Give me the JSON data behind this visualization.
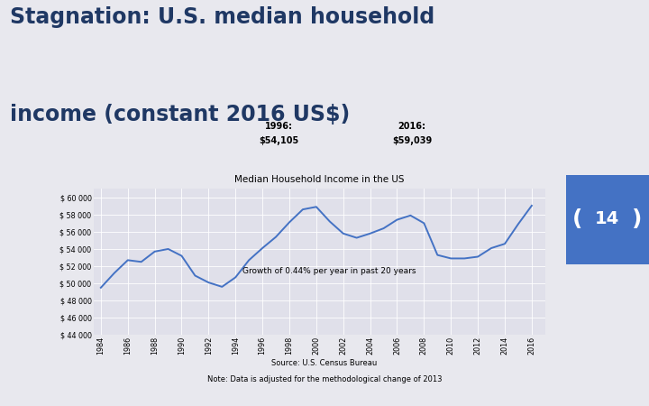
{
  "title_line1": "Stagnation: U.S. median household",
  "title_line2": "income (constant 2016 US$)",
  "title_color": "#1F3864",
  "subtitle_left_year": "1996:",
  "subtitle_left_val": "$54,105",
  "subtitle_right_year": "2016:",
  "subtitle_right_val": "$59,039",
  "chart_title": "Median Household Income in the US",
  "annotation": "Growth of 0.44% per year in past 20 years",
  "source": "Source: U.S. Census Bureau",
  "note": "Note: Data is adjusted for the methodological change of 2013",
  "page_num": "14",
  "line_color": "#4472C4",
  "bg_color_top": "#E8E8EE",
  "bg_color_bottom": "#D8D8E4",
  "plot_bg": "#E0E0EA",
  "grid_color": "#FFFFFF",
  "years": [
    1984,
    1985,
    1986,
    1987,
    1988,
    1989,
    1990,
    1991,
    1992,
    1993,
    1994,
    1995,
    1996,
    1997,
    1998,
    1999,
    2000,
    2001,
    2002,
    2003,
    2004,
    2005,
    2006,
    2007,
    2008,
    2009,
    2010,
    2011,
    2012,
    2013,
    2014,
    2015,
    2016
  ],
  "values": [
    49500,
    51200,
    52700,
    52500,
    53700,
    54000,
    53200,
    50900,
    50100,
    49600,
    50700,
    52700,
    54100,
    55400,
    57100,
    58600,
    58900,
    57200,
    55800,
    55300,
    55800,
    56400,
    57400,
    57900,
    57000,
    53300,
    52900,
    52900,
    53100,
    54100,
    54600,
    56900,
    59039
  ],
  "ylim": [
    44000,
    61000
  ],
  "yticks": [
    44000,
    46000,
    48000,
    50000,
    52000,
    54000,
    56000,
    58000,
    60000
  ],
  "sidebar_color": "#1F3864",
  "sidebar_light": "#4472C4"
}
